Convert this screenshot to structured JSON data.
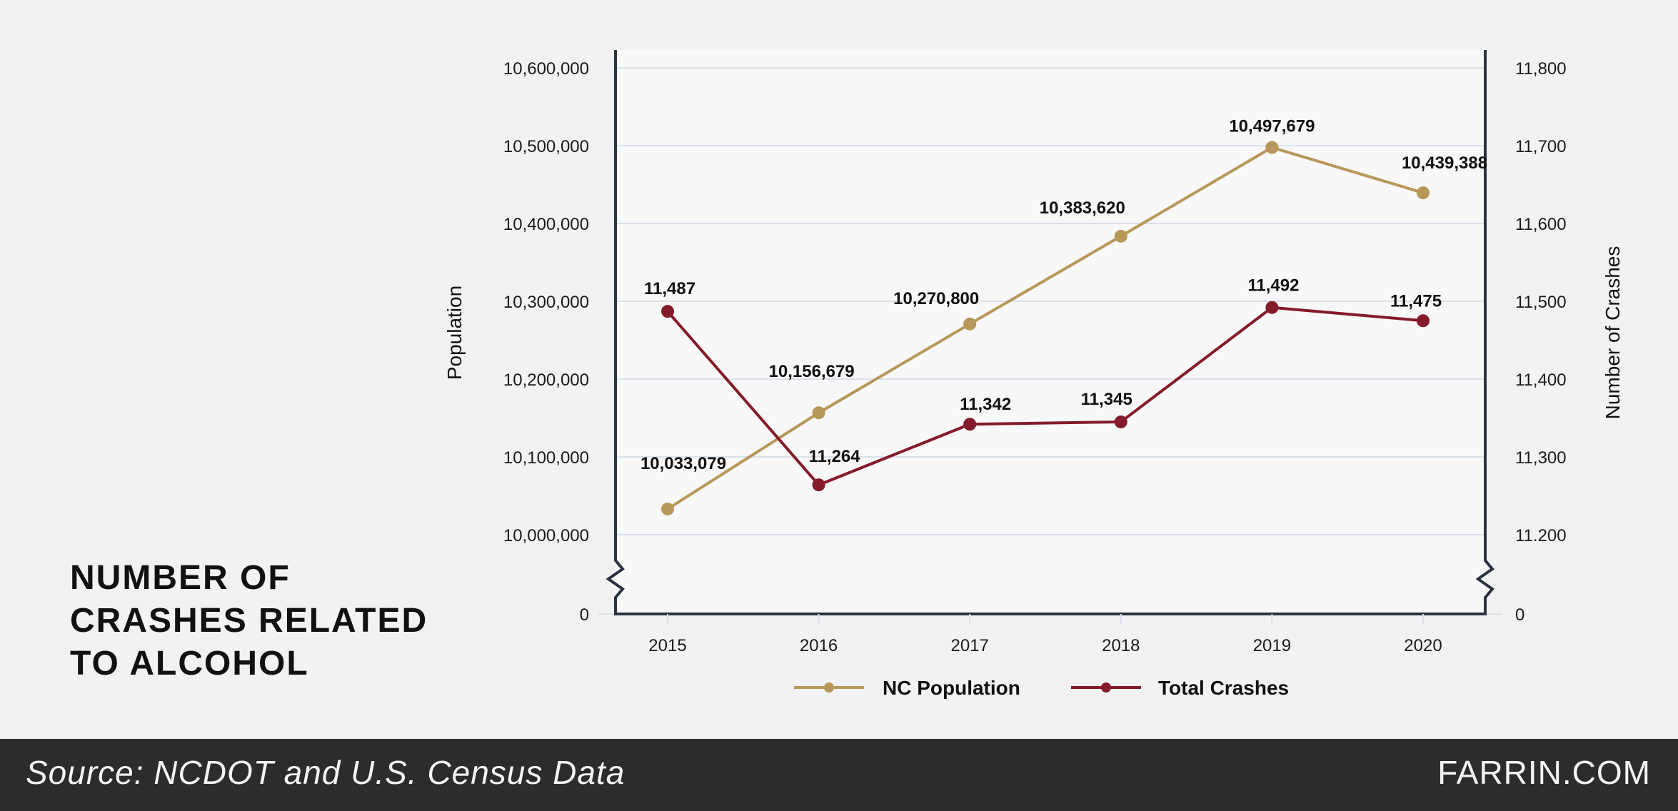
{
  "heading": {
    "lines": [
      "NUMBER OF",
      "CRASHES RELATED",
      "TO ALCOHOL"
    ]
  },
  "footer": {
    "source": "Source: NCDOT and U.S. Census Data",
    "brand": "FARRIN.COM"
  },
  "colors": {
    "population": "#b8975a",
    "crashes": "#841a2a",
    "axis": "#2b3240",
    "grid": "#d9e1ea",
    "plot_bg": "#f8f8f8"
  },
  "chart_data": {
    "type": "line",
    "categories": [
      "2015",
      "2016",
      "2017",
      "2018",
      "2019",
      "2020"
    ],
    "y_left": {
      "label": "Population",
      "range": [
        10000000,
        10600000
      ],
      "ticks": [
        10000000,
        10100000,
        10200000,
        10300000,
        10400000,
        10500000,
        10600000
      ],
      "tick_labels": [
        "10,000,000",
        "10,100,000",
        "10,200,000",
        "10,300,000",
        "10,400,000",
        "10,500,000",
        "10,600,000"
      ],
      "zero_label": "0",
      "axis_break": true
    },
    "y_right": {
      "label": "Number of Crashes",
      "range": [
        11200,
        11800
      ],
      "ticks": [
        11200,
        11300,
        11400,
        11500,
        11600,
        11700,
        11800
      ],
      "tick_labels": [
        "11.200",
        "11,300",
        "11,400",
        "11,500",
        "11,600",
        "11,700",
        "11,800"
      ],
      "zero_label": "0",
      "axis_break": true
    },
    "grid": true,
    "legend_position": "bottom",
    "series": [
      {
        "name": "NC Population",
        "axis": "left",
        "values": [
          10033079,
          10156679,
          10270800,
          10383620,
          10497679,
          10439388
        ],
        "labels": [
          "10,033,079",
          "10,156,679",
          "10,270,800",
          "10,383,620",
          "10,497,679",
          "10,439,388"
        ]
      },
      {
        "name": "Total Crashes",
        "axis": "right",
        "values": [
          11487,
          11264,
          11342,
          11345,
          11492,
          11475
        ],
        "labels": [
          "11,487",
          "11,264",
          "11,342",
          "11,345",
          "11,492",
          "11,475"
        ]
      }
    ]
  }
}
